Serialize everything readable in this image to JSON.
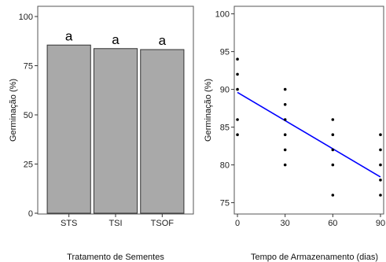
{
  "chart_data": [
    {
      "type": "bar",
      "categories": [
        "STS",
        "TSI",
        "TSOF"
      ],
      "values": [
        85.5,
        83.7,
        83.2
      ],
      "letters": [
        "a",
        "a",
        "a"
      ],
      "xlabel": "Tratamento de Sementes",
      "ylabel": "Germinação (%)",
      "ylim": [
        0,
        100
      ],
      "yticks": [
        0,
        25,
        50,
        75,
        100
      ],
      "bar_color": "#a9a9a9",
      "grid": false
    },
    {
      "type": "scatter",
      "xlabel": "Tempo de Armazenamento (dias)",
      "ylabel": "Germinação (%)",
      "xlim": [
        -2,
        92
      ],
      "ylim": [
        73.5,
        101
      ],
      "xticks": [
        0,
        30,
        60,
        90
      ],
      "yticks": [
        75,
        80,
        85,
        90,
        95,
        100
      ],
      "points": [
        [
          0,
          94
        ],
        [
          0,
          92
        ],
        [
          0,
          90
        ],
        [
          0,
          86
        ],
        [
          0,
          84
        ],
        [
          30,
          90
        ],
        [
          30,
          88
        ],
        [
          30,
          86
        ],
        [
          30,
          84
        ],
        [
          30,
          82
        ],
        [
          30,
          80
        ],
        [
          60,
          86
        ],
        [
          60,
          84
        ],
        [
          60,
          82
        ],
        [
          60,
          80
        ],
        [
          60,
          76
        ],
        [
          90,
          84
        ],
        [
          90,
          82
        ],
        [
          90,
          80
        ],
        [
          90,
          78
        ],
        [
          90,
          76
        ]
      ],
      "fit_line": {
        "x": [
          0,
          90
        ],
        "y": [
          89.6,
          78.4
        ],
        "color": "#0000ff"
      },
      "grid": false
    }
  ]
}
